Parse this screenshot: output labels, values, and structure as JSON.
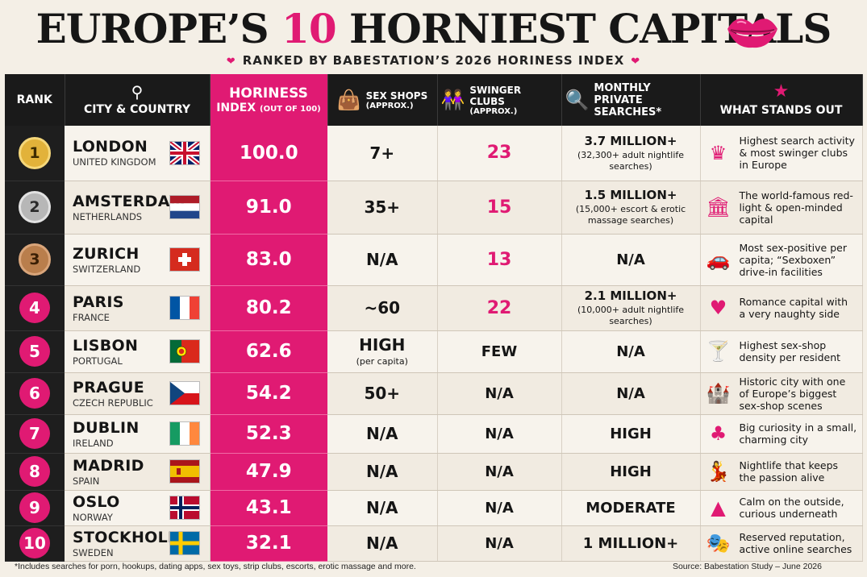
{
  "title": {
    "pre": "EUROPE’S ",
    "num": "10",
    "post": " HORNIEST CAPITALS"
  },
  "subtitle": "RANKED BY BABESTATION’S 2026 HORINESS INDEX",
  "headers": {
    "rank": "RANK",
    "city": "CITY & COUNTRY",
    "index_main": "HORINESS",
    "index_sub_a": "INDEX",
    "index_sub_b": "(OUT OF 100)",
    "shops_main": "SEX SHOPS",
    "shops_sub": "(APPROX.)",
    "clubs_main": "SWINGER CLUBS",
    "clubs_sub": "(APPROX.)",
    "searches_main": "MONTHLY PRIVATE",
    "searches_sub": "SEARCHES*",
    "stand": "WHAT STANDS OUT"
  },
  "rows": [
    {
      "rank": "1",
      "medal": "gold",
      "city": "LONDON",
      "country": "UNITED KINGDOM",
      "flag": "uk",
      "index": "100.0",
      "shops": "7+",
      "shops_sub": "",
      "clubs": "23",
      "clubs_pink": true,
      "searches": "3.7 MILLION+",
      "searches_sub": "(32,300+ adult nightlife searches)",
      "stand": "Highest search activity & most swinger clubs in Europe",
      "icon": "crown-icon"
    },
    {
      "rank": "2",
      "medal": "silver",
      "city": "AMSTERDAM",
      "country": "NETHERLANDS",
      "flag": "nl",
      "index": "91.0",
      "shops": "35+",
      "shops_sub": "",
      "clubs": "15",
      "clubs_pink": true,
      "searches": "1.5 MILLION+",
      "searches_sub": "(15,000+ escort & erotic massage searches)",
      "stand": "The world-famous red-light & open-minded capital",
      "icon": "building-icon"
    },
    {
      "rank": "3",
      "medal": "bronze",
      "city": "ZURICH",
      "country": "SWITZERLAND",
      "flag": "ch",
      "index": "83.0",
      "shops": "N/A",
      "shops_sub": "",
      "clubs": "13",
      "clubs_pink": true,
      "searches": "N/A",
      "searches_sub": "",
      "stand": "Most sex-positive per capita; “Sexboxen” drive-in facilities",
      "icon": "car-icon"
    },
    {
      "rank": "4",
      "medal": "pink",
      "city": "PARIS",
      "country": "FRANCE",
      "flag": "fr",
      "index": "80.2",
      "shops": "~60",
      "shops_sub": "",
      "clubs": "22",
      "clubs_pink": true,
      "searches": "2.1 MILLION+",
      "searches_sub": "(10,000+ adult nightlife searches)",
      "stand": "Romance capital with a very naughty side",
      "icon": "heart-icon"
    },
    {
      "rank": "5",
      "medal": "pink",
      "city": "LISBON",
      "country": "PORTUGAL",
      "flag": "pt",
      "index": "62.6",
      "shops": "HIGH",
      "shops_sub": "(per capita)",
      "clubs": "FEW",
      "clubs_pink": false,
      "searches": "N/A",
      "searches_sub": "",
      "stand": "Highest sex-shop density per resident",
      "icon": "cocktail-icon"
    },
    {
      "rank": "6",
      "medal": "pink",
      "city": "PRAGUE",
      "country": "CZECH REPUBLIC",
      "flag": "cz",
      "index": "54.2",
      "shops": "50+",
      "shops_sub": "",
      "clubs": "N/A",
      "clubs_pink": false,
      "searches": "N/A",
      "searches_sub": "",
      "stand": "Historic city with one of Europe’s biggest sex-shop scenes",
      "icon": "castle-icon"
    },
    {
      "rank": "7",
      "medal": "pink",
      "city": "DUBLIN",
      "country": "IRELAND",
      "flag": "ie",
      "index": "52.3",
      "shops": "N/A",
      "shops_sub": "",
      "clubs": "N/A",
      "clubs_pink": false,
      "searches": "HIGH",
      "searches_sub": "",
      "stand": "Big curiosity in a small, charming city",
      "icon": "clover-icon"
    },
    {
      "rank": "8",
      "medal": "pink",
      "city": "MADRID",
      "country": "SPAIN",
      "flag": "es",
      "index": "47.9",
      "shops": "N/A",
      "shops_sub": "",
      "clubs": "N/A",
      "clubs_pink": false,
      "searches": "HIGH",
      "searches_sub": "",
      "stand": "Nightlife that keeps the passion alive",
      "icon": "dancers-icon"
    },
    {
      "rank": "9",
      "medal": "pink",
      "city": "OSLO",
      "country": "NORWAY",
      "flag": "no",
      "index": "43.1",
      "shops": "N/A",
      "shops_sub": "",
      "clubs": "N/A",
      "clubs_pink": false,
      "searches": "MODERATE",
      "searches_sub": "",
      "stand": "Calm on the outside, curious underneath",
      "icon": "mountain-icon"
    },
    {
      "rank": "10",
      "medal": "pink",
      "city": "STOCKHOLM",
      "country": "SWEDEN",
      "flag": "se",
      "index": "32.1",
      "shops": "N/A",
      "shops_sub": "",
      "clubs": "N/A",
      "clubs_pink": false,
      "searches": "1 MILLION+",
      "searches_sub": "",
      "stand": "Reserved reputation, active online searches",
      "icon": "mask-icon"
    }
  ],
  "footer": {
    "note": "*Includes searches for porn, hookups, dating apps, sex toys, strip clubs, escorts, erotic massage and more.",
    "source": "Source: Babestation Study – June 2026"
  },
  "colors": {
    "accent": "#e01a73",
    "dark": "#1a1a1a",
    "background": "#f4efe6"
  }
}
